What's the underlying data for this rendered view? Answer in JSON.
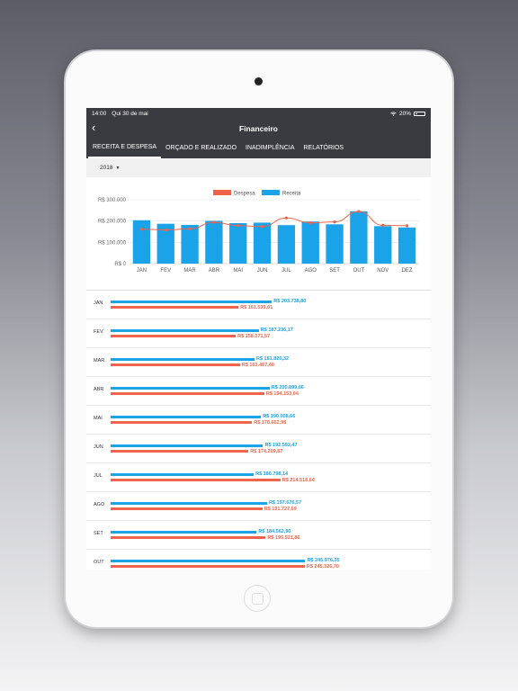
{
  "status": {
    "time": "14:00",
    "date": "Qui 30 de mai",
    "battery": "20%"
  },
  "nav": {
    "back": "‹",
    "title": "Financeiro"
  },
  "tabs": [
    {
      "label": "RECEITA E DESPESA",
      "active": true
    },
    {
      "label": "ORÇADO E REALIZADO",
      "active": false
    },
    {
      "label": "INADIMPLÊNCIA",
      "active": false
    },
    {
      "label": "RELATÓRIOS",
      "active": false
    }
  ],
  "filter": {
    "year": "2018"
  },
  "colors": {
    "receita": "#1aa3e8",
    "despesa": "#f0634b",
    "header": "#3a3b40"
  },
  "chart_data": {
    "type": "bar",
    "categories": [
      "JAN",
      "FEV",
      "MAR",
      "ABR",
      "MAI",
      "JUN",
      "JUL",
      "AGO",
      "SET",
      "OUT",
      "NOV",
      "DEZ"
    ],
    "series": [
      {
        "name": "Receita",
        "type": "bar",
        "values": [
          203738.8,
          187236.17,
          181820.32,
          200899.06,
          190008.66,
          192592.47,
          180798.14,
          197676.57,
          184562.9,
          245976.35,
          176000,
          170000
        ]
      },
      {
        "name": "Despesa",
        "type": "line",
        "values": [
          161539.01,
          158071.57,
          163467.4,
          194153.04,
          178662.98,
          174209.87,
          214518.64,
          191727.69,
          195921.86,
          245326.7,
          180000,
          178000
        ]
      }
    ],
    "ylim": [
      0,
      300000
    ],
    "yticks": [
      "R$ 0",
      "R$ 100.000",
      "R$ 200.000",
      "R$ 300.000"
    ],
    "legend": "top-center",
    "grid": true
  },
  "rows": [
    {
      "month": "JAN",
      "receita": "R$ 203.738,80",
      "despesa": "R$ 161.539,01",
      "receita_value": 203738.8,
      "despesa_value": 161539.01
    },
    {
      "month": "FEV",
      "receita": "R$ 187.236,17",
      "despesa": "R$ 158.071,57",
      "receita_value": 187236.17,
      "despesa_value": 158071.57
    },
    {
      "month": "MAR",
      "receita": "R$ 181.820,32",
      "despesa": "R$ 163.467,40",
      "receita_value": 181820.32,
      "despesa_value": 163467.4
    },
    {
      "month": "ABR",
      "receita": "R$ 200.899,06",
      "despesa": "R$ 194.153,04",
      "receita_value": 200899.06,
      "despesa_value": 194153.04
    },
    {
      "month": "MAI",
      "receita": "R$ 190.008,66",
      "despesa": "R$ 178.662,98",
      "receita_value": 190008.66,
      "despesa_value": 178662.98
    },
    {
      "month": "JUN",
      "receita": "R$ 192.592,47",
      "despesa": "R$ 174.209,87",
      "receita_value": 192592.47,
      "despesa_value": 174209.87
    },
    {
      "month": "JUL",
      "receita": "R$ 180.798,14",
      "despesa": "R$ 214.518,64",
      "receita_value": 180798.14,
      "despesa_value": 214518.64
    },
    {
      "month": "AGO",
      "receita": "R$ 197.676,57",
      "despesa": "R$ 191.727,69",
      "receita_value": 197676.57,
      "despesa_value": 191727.69
    },
    {
      "month": "SET",
      "receita": "R$ 184.562,90",
      "despesa": "R$ 195.921,86",
      "receita_value": 184562.9,
      "despesa_value": 195921.86
    },
    {
      "month": "OUT",
      "receita": "R$ 245.976,35",
      "despesa": "R$ 245.326,70",
      "receita_value": 245976.35,
      "despesa_value": 245326.7
    }
  ]
}
